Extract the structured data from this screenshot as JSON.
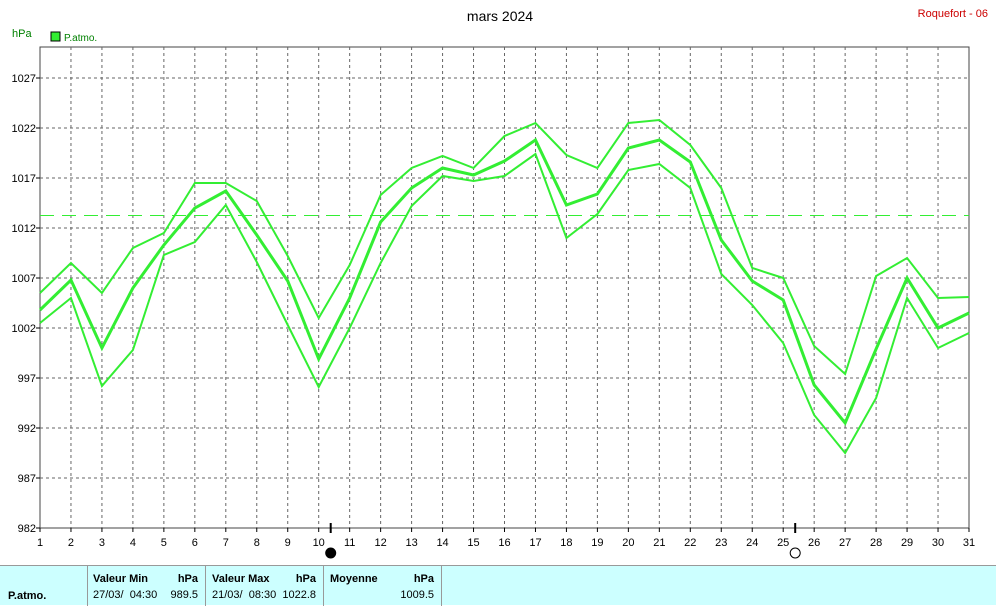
{
  "header": {
    "title": "mars 2024",
    "station": "Roquefort - 06",
    "unit": "hPa",
    "legend_label": "P.atmo."
  },
  "chart_data": {
    "type": "line",
    "ylabel": "hPa",
    "ylim": [
      982,
      1027
    ],
    "y_ticks": [
      "982",
      "987",
      "992",
      "997",
      "1002",
      "1007",
      "1012",
      "1017",
      "1022",
      "1027"
    ],
    "x": [
      1,
      2,
      3,
      4,
      5,
      6,
      7,
      8,
      9,
      10,
      11,
      12,
      13,
      14,
      15,
      16,
      17,
      18,
      19,
      20,
      21,
      22,
      23,
      24,
      25,
      26,
      27,
      28,
      29,
      30,
      31
    ],
    "x_ticks": [
      "1",
      "2",
      "3",
      "4",
      "5",
      "6",
      "7",
      "8",
      "9",
      "10",
      "11",
      "12",
      "13",
      "14",
      "15",
      "16",
      "17",
      "18",
      "19",
      "20",
      "21",
      "22",
      "23",
      "24",
      "25",
      "26",
      "27",
      "28",
      "29",
      "30",
      "31"
    ],
    "series": [
      {
        "name": "max",
        "values": [
          1005.5,
          1008.5,
          1005.5,
          1010,
          1011.5,
          1016.5,
          1016.5,
          1014.7,
          1009.2,
          1003,
          1008.3,
          1015.3,
          1018,
          1019.2,
          1018,
          1021.2,
          1022.5,
          1019.3,
          1018,
          1022.5,
          1022.8,
          1020.3,
          1016,
          1008,
          1007,
          1000.2,
          997.4,
          1007.2,
          1009,
          1005,
          1005.1
        ]
      },
      {
        "name": "average",
        "values": [
          1003.8,
          1006.8,
          1000,
          1006,
          1010.3,
          1014,
          1015.7,
          1011.3,
          1006.7,
          998.9,
          1005,
          1012.6,
          1016,
          1018,
          1017.3,
          1018.7,
          1020.8,
          1014.3,
          1015.4,
          1020,
          1020.8,
          1018.6,
          1010.8,
          1006.7,
          1004.8,
          996.3,
          992.5,
          999.9,
          1007,
          1002,
          1003.5
        ]
      },
      {
        "name": "min",
        "values": [
          1002.5,
          1005,
          996.2,
          999.8,
          1009.3,
          1010.6,
          1014.3,
          1008.6,
          1002.3,
          996.1,
          1002,
          1008.5,
          1014.2,
          1017.2,
          1016.7,
          1017.2,
          1019.4,
          1011,
          1013.4,
          1017.8,
          1018.4,
          1016,
          1007.4,
          1004.3,
          1000.5,
          993.3,
          989.5,
          995,
          1005,
          1000,
          1001.5
        ]
      }
    ],
    "reference_line": {
      "value": 1013.25,
      "style": "dashed"
    },
    "moon_phases": [
      {
        "day": 10,
        "phase": "new-moon"
      },
      {
        "day": 25,
        "phase": "full-moon"
      }
    ],
    "grid": true,
    "colors": {
      "line": "#33ee33",
      "reference": "#33ee33",
      "grid": "#666666"
    }
  },
  "stats": {
    "row_label": "P.atmo.",
    "min": {
      "header": "Valeur Min",
      "unit": "hPa",
      "date": "27/03/  04:30",
      "value": "989.5"
    },
    "max": {
      "header": "Valeur Max",
      "unit": "hPa",
      "date": "21/03/  08:30",
      "value": "1022.8"
    },
    "avg": {
      "header": "Moyenne",
      "unit": "hPa",
      "value": "1009.5"
    }
  }
}
